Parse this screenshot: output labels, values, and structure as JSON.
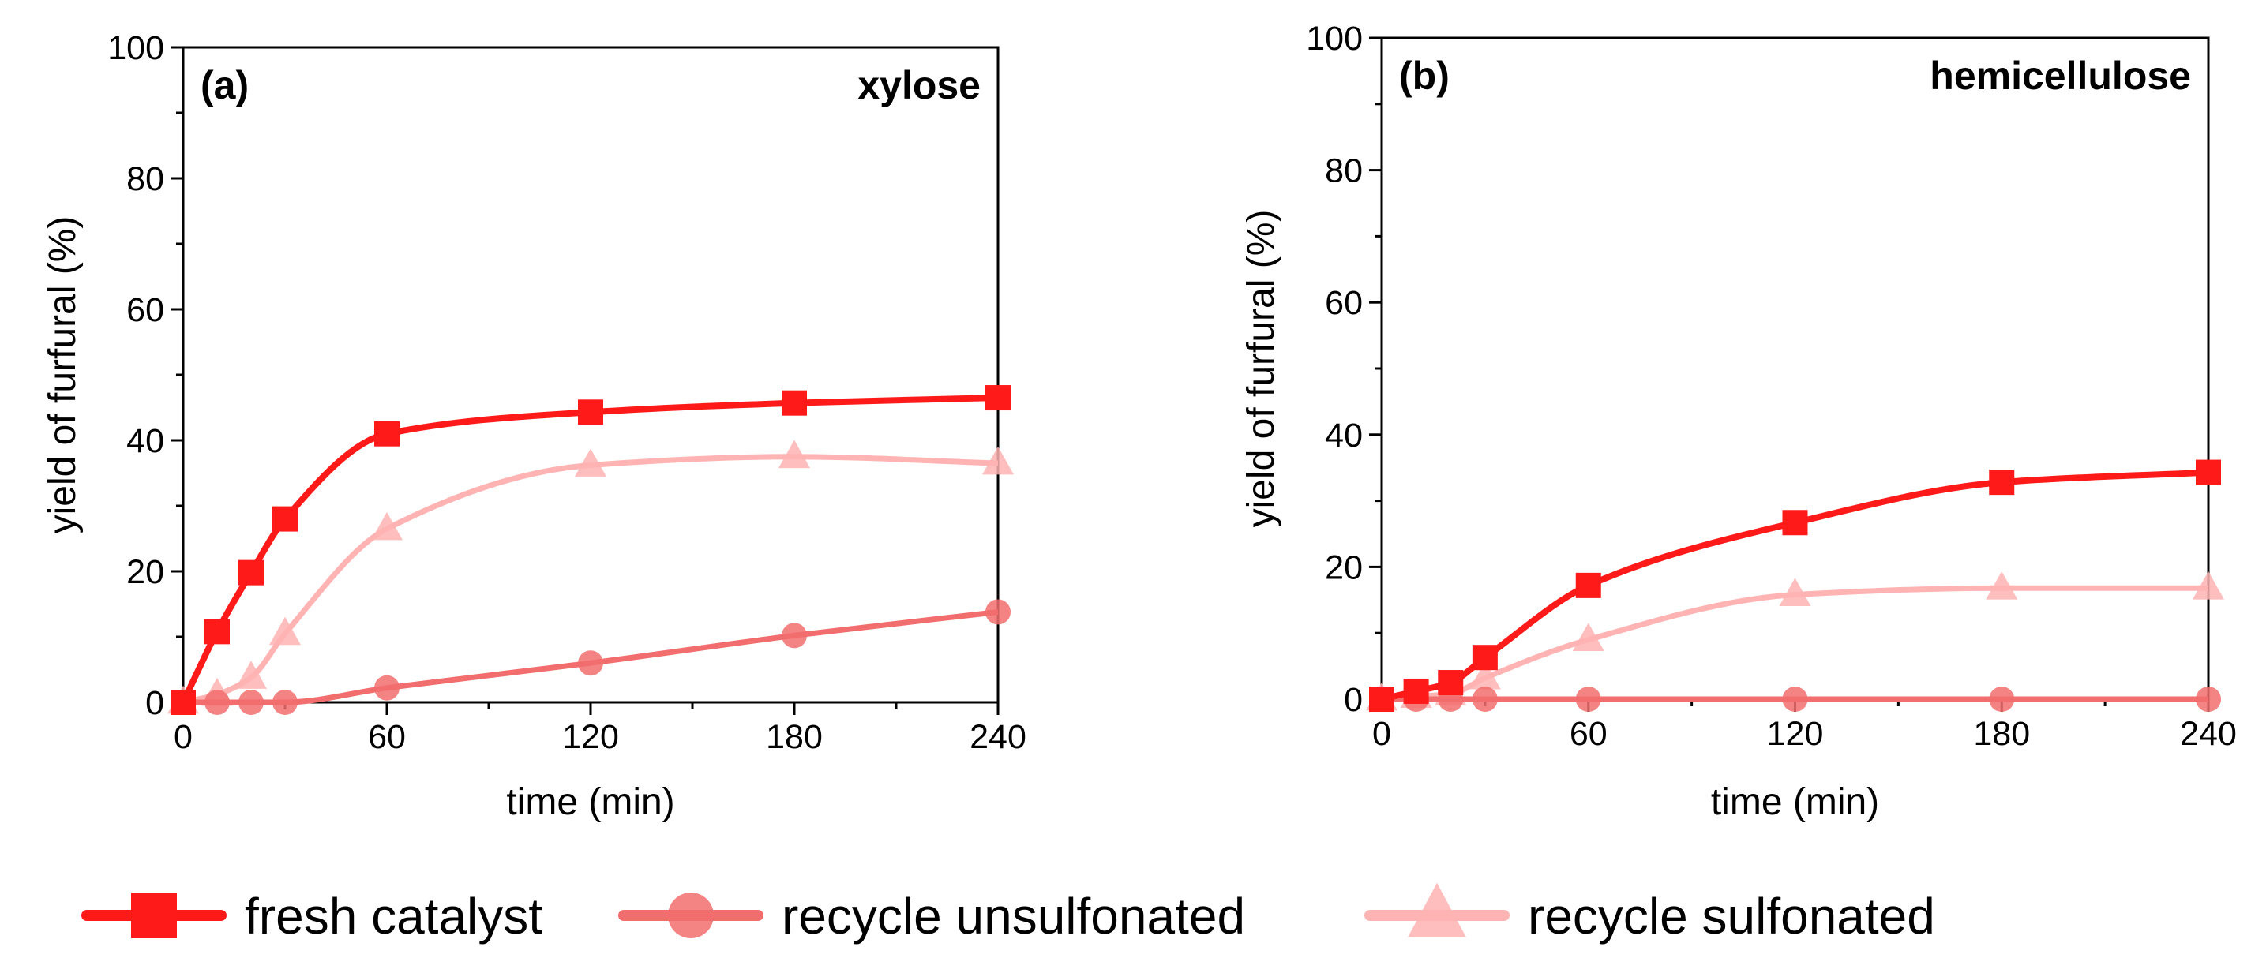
{
  "chart_data": [
    {
      "type": "line",
      "panel_label": "(a)",
      "title": "xylose",
      "xlabel": "time (min)",
      "ylabel": "yield of furfural (%)",
      "xlim": [
        0,
        240
      ],
      "ylim": [
        0,
        100
      ],
      "x_ticks": [
        "0",
        "60",
        "120",
        "180",
        "240"
      ],
      "y_ticks": [
        "0",
        "20",
        "40",
        "60",
        "80",
        "100"
      ],
      "grid": false,
      "series": [
        {
          "name": "fresh catalyst",
          "marker": "square",
          "color": "#ff1a1a",
          "x": [
            0,
            10,
            20,
            30,
            60,
            120,
            180,
            240
          ],
          "y": [
            0,
            10.8,
            19.8,
            28,
            41,
            44.3,
            45.7,
            46.5
          ]
        },
        {
          "name": "recycle unsulfonated",
          "marker": "circle",
          "color": "#f26d6d",
          "x": [
            0,
            10,
            20,
            30,
            60,
            120,
            180,
            240
          ],
          "y": [
            0,
            0,
            0,
            0,
            2.2,
            6,
            10.2,
            13.8
          ]
        },
        {
          "name": "recycle sulfonated",
          "marker": "triangle",
          "color": "#ffb3b3",
          "x": [
            0,
            10,
            20,
            30,
            60,
            120,
            180,
            240
          ],
          "y": [
            0,
            1.2,
            3.8,
            10.5,
            26.5,
            36.2,
            37.5,
            36.5
          ]
        }
      ]
    },
    {
      "type": "line",
      "panel_label": "(b)",
      "title": "hemicellulose",
      "xlabel": "time (min)",
      "ylabel": "yield of furfural (%)",
      "xlim": [
        0,
        240
      ],
      "ylim": [
        0,
        100
      ],
      "x_ticks": [
        "0",
        "60",
        "120",
        "180",
        "240"
      ],
      "y_ticks": [
        "0",
        "20",
        "40",
        "60",
        "80",
        "100"
      ],
      "grid": false,
      "series": [
        {
          "name": "fresh catalyst",
          "marker": "square",
          "color": "#ff1a1a",
          "x": [
            0,
            10,
            20,
            30,
            60,
            120,
            180,
            240
          ],
          "y": [
            0,
            1.2,
            2.5,
            6.3,
            17.2,
            26.7,
            32.8,
            34.3
          ]
        },
        {
          "name": "recycle unsulfonated",
          "marker": "circle",
          "color": "#f26d6d",
          "x": [
            0,
            10,
            20,
            30,
            60,
            120,
            180,
            240
          ],
          "y": [
            0,
            0,
            0,
            0,
            0,
            0,
            0,
            0
          ]
        },
        {
          "name": "recycle sulfonated",
          "marker": "triangle",
          "color": "#ffb3b3",
          "x": [
            0,
            10,
            20,
            30,
            60,
            120,
            180,
            240
          ],
          "y": [
            0,
            0.4,
            0.8,
            3.2,
            9,
            15.8,
            16.8,
            16.8
          ]
        }
      ]
    }
  ],
  "legend": [
    {
      "label": "fresh catalyst",
      "marker": "square",
      "color": "#ff1a1a"
    },
    {
      "label": "recycle unsulfonated",
      "marker": "circle",
      "color": "#f26d6d"
    },
    {
      "label": "recycle sulfonated",
      "marker": "triangle",
      "color": "#ffb3b3"
    }
  ]
}
